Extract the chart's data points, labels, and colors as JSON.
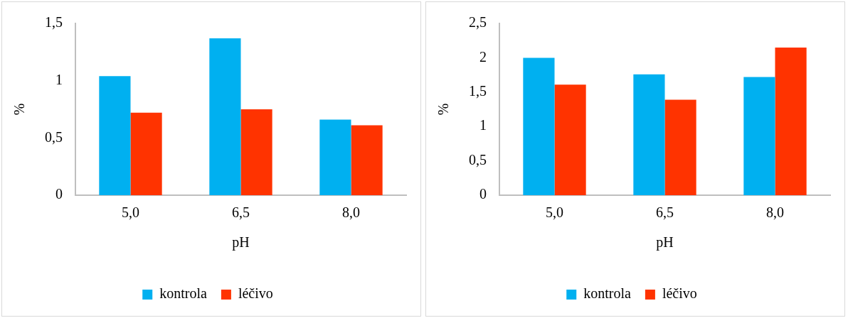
{
  "chart_data": [
    {
      "type": "bar",
      "categories": [
        "5,0",
        "6,5",
        "8,0"
      ],
      "xlabel": "pH",
      "ylabel": "%",
      "ylim": [
        0,
        1.5
      ],
      "yticks": [
        0,
        {
          "value": 0.5,
          "label": "0,5"
        },
        1,
        {
          "value": 1.5,
          "label": "1,5"
        }
      ],
      "grid": false,
      "legend": "bottom",
      "series": [
        {
          "name": "kontrola",
          "color": "#00b0f0",
          "values": [
            1.04,
            1.37,
            0.66
          ]
        },
        {
          "name": "léčivo",
          "color": "#ff3300",
          "values": [
            0.72,
            0.75,
            0.61
          ]
        }
      ]
    },
    {
      "type": "bar",
      "categories": [
        "5,0",
        "6,5",
        "8,0"
      ],
      "xlabel": "pH",
      "ylabel": "%",
      "ylim": [
        0,
        2.5
      ],
      "yticks": [
        0,
        {
          "value": 0.5,
          "label": "0,5"
        },
        1,
        {
          "value": 1.5,
          "label": "1,5"
        },
        2,
        {
          "value": 2.5,
          "label": "2,5"
        }
      ],
      "grid": false,
      "legend": "bottom",
      "series": [
        {
          "name": "kontrola",
          "color": "#00b0f0",
          "values": [
            2.0,
            1.76,
            1.72
          ]
        },
        {
          "name": "léčivo",
          "color": "#ff3300",
          "values": [
            1.61,
            1.39,
            2.15
          ]
        }
      ]
    }
  ]
}
